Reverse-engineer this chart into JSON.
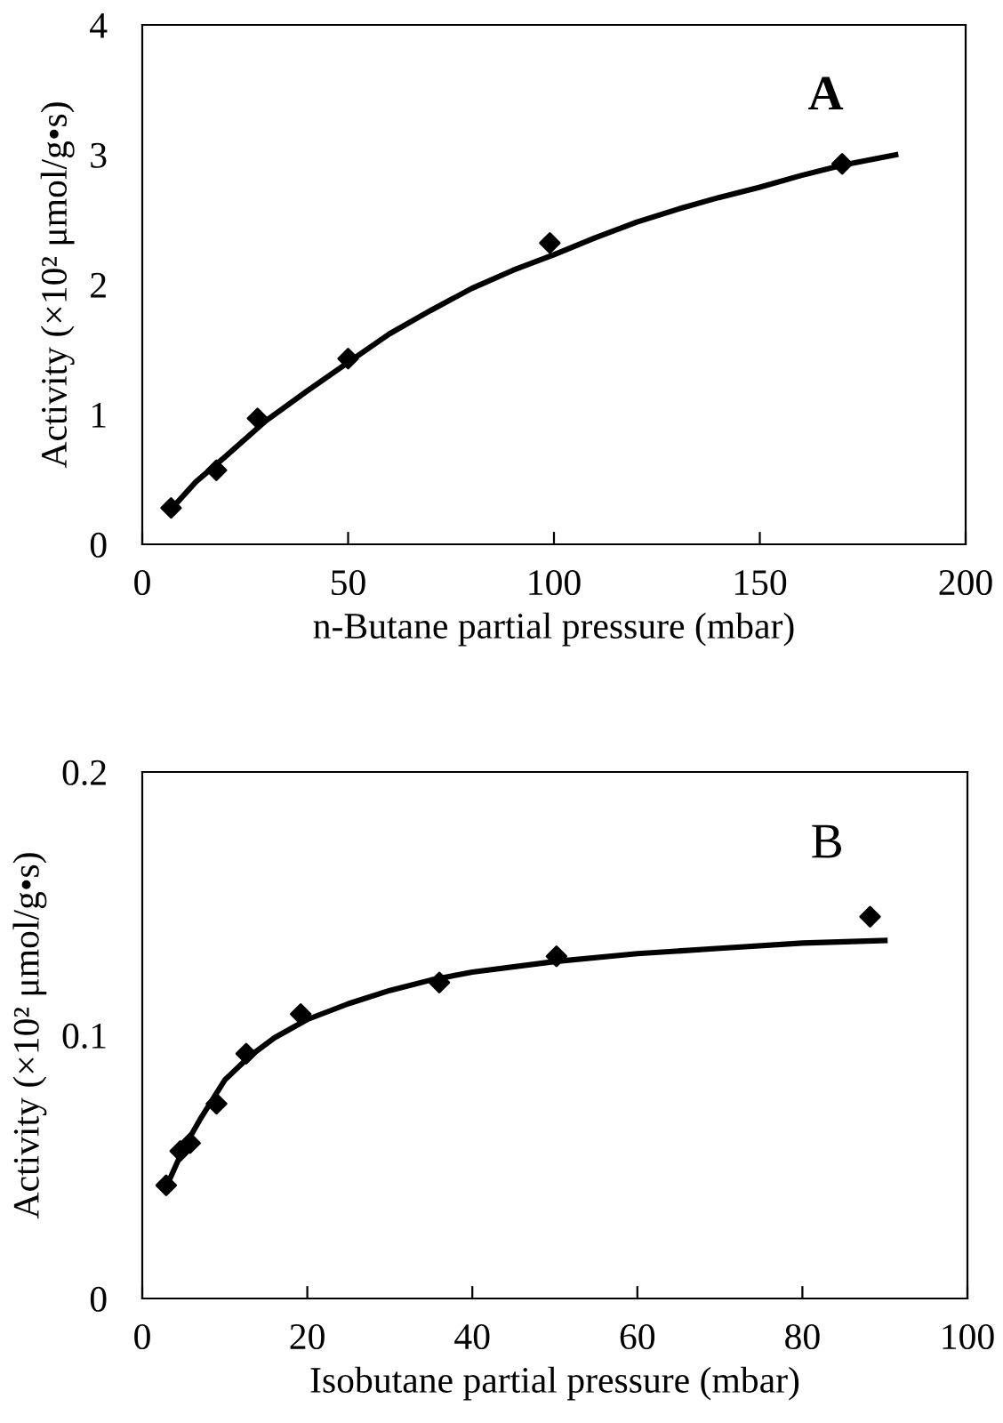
{
  "chart_data": [
    {
      "type": "scatter",
      "xlabel": "n-Butane partial pressure (mbar)",
      "ylabel": "Activity (×10² μmol/g•s)",
      "annotations": [
        "A"
      ],
      "xlim": [
        0,
        200
      ],
      "ylim": [
        0,
        4
      ],
      "xticks": [
        0,
        50,
        100,
        150,
        200
      ],
      "yticks": [
        0,
        1,
        2,
        3,
        4
      ],
      "grid": false,
      "legend": false,
      "series": [
        {
          "type": "scatter",
          "color": "#000000",
          "marker": "diamond",
          "x": [
            7,
            18,
            28,
            50,
            99,
            170
          ],
          "values": [
            0.28,
            0.57,
            0.97,
            1.43,
            2.32,
            2.93
          ]
        },
        {
          "type": "line",
          "color": "#000000",
          "marker": "none",
          "line_style": "solid",
          "x": [
            7,
            13,
            20,
            30,
            40,
            50,
            60,
            70,
            80,
            90,
            100,
            110,
            120,
            130,
            140,
            150,
            160,
            170,
            183
          ],
          "values": [
            0.27,
            0.48,
            0.67,
            0.95,
            1.18,
            1.4,
            1.62,
            1.8,
            1.97,
            2.11,
            2.23,
            2.36,
            2.48,
            2.58,
            2.67,
            2.75,
            2.84,
            2.92,
            3.0
          ]
        }
      ]
    },
    {
      "type": "scatter",
      "xlabel": "Isobutane partial pressure (mbar)",
      "ylabel": "Activity (×10² μmol/g•s)",
      "annotations": [
        "B"
      ],
      "xlim": [
        0,
        100
      ],
      "ylim": [
        0,
        0.2
      ],
      "xticks": [
        0,
        20,
        40,
        60,
        80,
        100
      ],
      "yticks": [
        0,
        0.1,
        0.2
      ],
      "grid": false,
      "legend": false,
      "series": [
        {
          "type": "scatter",
          "color": "#000000",
          "marker": "diamond",
          "x": [
            2.9,
            4.6,
            5.8,
            9.0,
            12.6,
            19.2,
            36.0,
            50.2,
            88.2
          ],
          "values": [
            0.043,
            0.056,
            0.059,
            0.074,
            0.093,
            0.108,
            0.12,
            0.13,
            0.145
          ]
        },
        {
          "type": "line",
          "color": "#000000",
          "marker": "none",
          "line_style": "solid",
          "x": [
            3,
            5,
            7,
            10,
            13,
            16,
            20,
            25,
            30,
            35,
            40,
            50,
            60,
            70,
            80,
            90
          ],
          "values": [
            0.043,
            0.057,
            0.068,
            0.083,
            0.092,
            0.099,
            0.106,
            0.112,
            0.117,
            0.121,
            0.124,
            0.128,
            0.131,
            0.133,
            0.135,
            0.136
          ]
        }
      ]
    }
  ]
}
